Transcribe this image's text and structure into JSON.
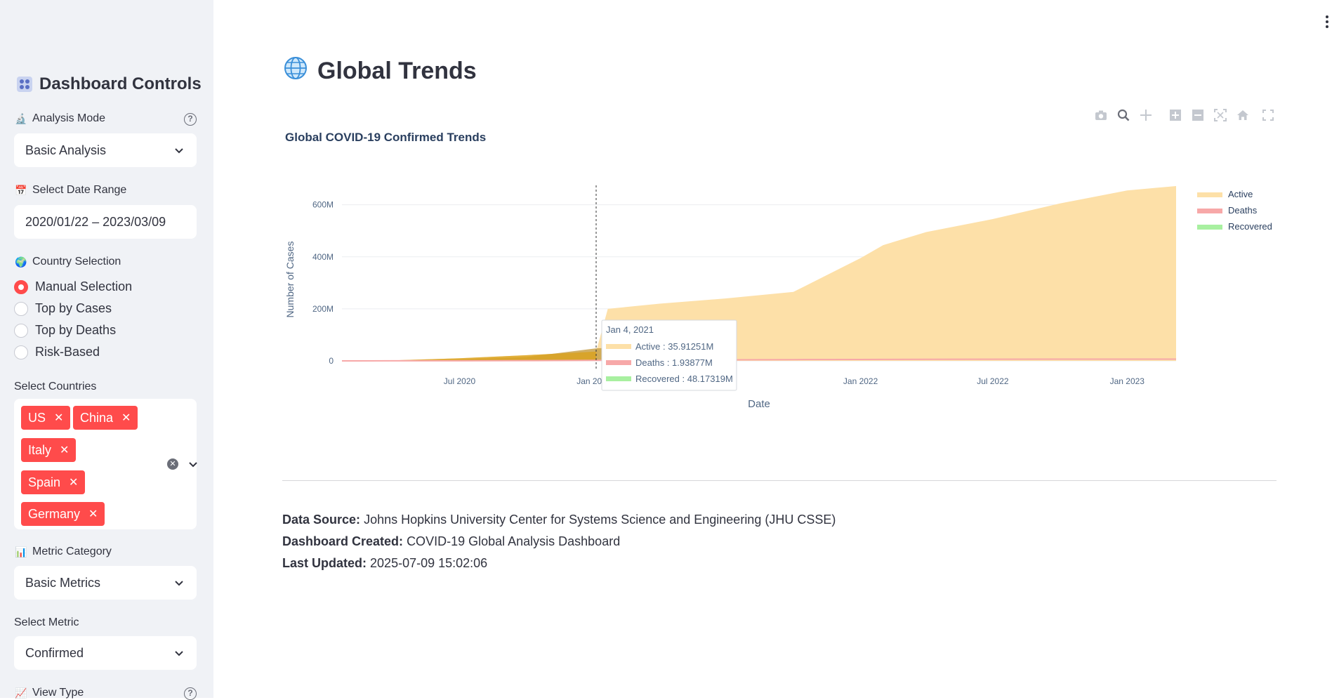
{
  "sidebar": {
    "title": "Dashboard Controls",
    "analysis_mode": {
      "label": "Analysis Mode",
      "value": "Basic Analysis"
    },
    "date_range": {
      "label": "Select Date Range",
      "value": "2020/01/22 – 2023/03/09"
    },
    "country_selection": {
      "label": "Country Selection",
      "options": [
        "Manual Selection",
        "Top by Cases",
        "Top by Deaths",
        "Risk-Based"
      ],
      "selected": "Manual Selection"
    },
    "countries": {
      "label": "Select Countries",
      "selected": [
        "US",
        "China",
        "Italy",
        "Spain",
        "Germany"
      ]
    },
    "metric_category": {
      "label": "Metric Category",
      "value": "Basic Metrics"
    },
    "metric": {
      "label": "Select Metric",
      "value": "Confirmed"
    },
    "view_type": {
      "label": "View Type"
    }
  },
  "main": {
    "title": "Global Trends",
    "chart_title": "Global COVID-19 Confirmed Trends",
    "tooltip": {
      "date": "Jan 4, 2021",
      "active": "Active : 35.91251M",
      "deaths": "Deaths : 1.93877M",
      "recovered": "Recovered : 48.17319M"
    },
    "footer": {
      "source_label": "Data Source:",
      "source_value": "Johns Hopkins University Center for Systems Science and Engineering (JHU CSSE)",
      "created_label": "Dashboard Created:",
      "created_value": "COVID-19 Global Analysis Dashboard",
      "updated_label": "Last Updated:",
      "updated_value": "2025-07-09 15:02:06"
    }
  },
  "chart_data": {
    "type": "area",
    "title": "Global COVID-19 Confirmed Trends",
    "xlabel": "Date",
    "ylabel": "Number of Cases",
    "ylim": [
      0,
      680
    ],
    "y_unit": "M",
    "y_ticks": [
      "0",
      "200M",
      "400M",
      "600M"
    ],
    "x_ticks": [
      "Jul 2020",
      "Jan 2021",
      "Jan 2022",
      "Jul 2022",
      "Jan 2023"
    ],
    "legend_position": "top-right",
    "grid": true,
    "colors": {
      "Active": "#fde0a8",
      "Deaths": "#f7a8a8",
      "Recovered": "#a8f0a0"
    },
    "x": [
      "2020-01-22",
      "2020-04-01",
      "2020-07-01",
      "2020-10-01",
      "2021-01-04",
      "2021-01-20",
      "2021-04-01",
      "2021-07-01",
      "2021-10-01",
      "2022-01-01",
      "2022-02-01",
      "2022-04-01",
      "2022-07-01",
      "2022-10-01",
      "2023-01-01",
      "2023-03-09"
    ],
    "series": [
      {
        "name": "Active",
        "values": [
          0.5,
          2,
          10,
          22,
          35.9,
          200,
          220,
          240,
          265,
          395,
          445,
          495,
          545,
          605,
          655,
          672
        ]
      },
      {
        "name": "Deaths",
        "values": [
          0.01,
          0.2,
          0.5,
          1.0,
          1.94,
          2.1,
          2.8,
          3.9,
          4.8,
          5.5,
          5.7,
          6.1,
          6.4,
          6.6,
          6.7,
          6.9
        ]
      },
      {
        "name": "Recovered",
        "values": [
          0,
          1,
          5,
          15,
          48.2,
          50,
          0,
          0,
          0,
          0,
          0,
          0,
          0,
          0,
          0,
          0
        ]
      }
    ],
    "hover_date": "2021-01-04"
  }
}
